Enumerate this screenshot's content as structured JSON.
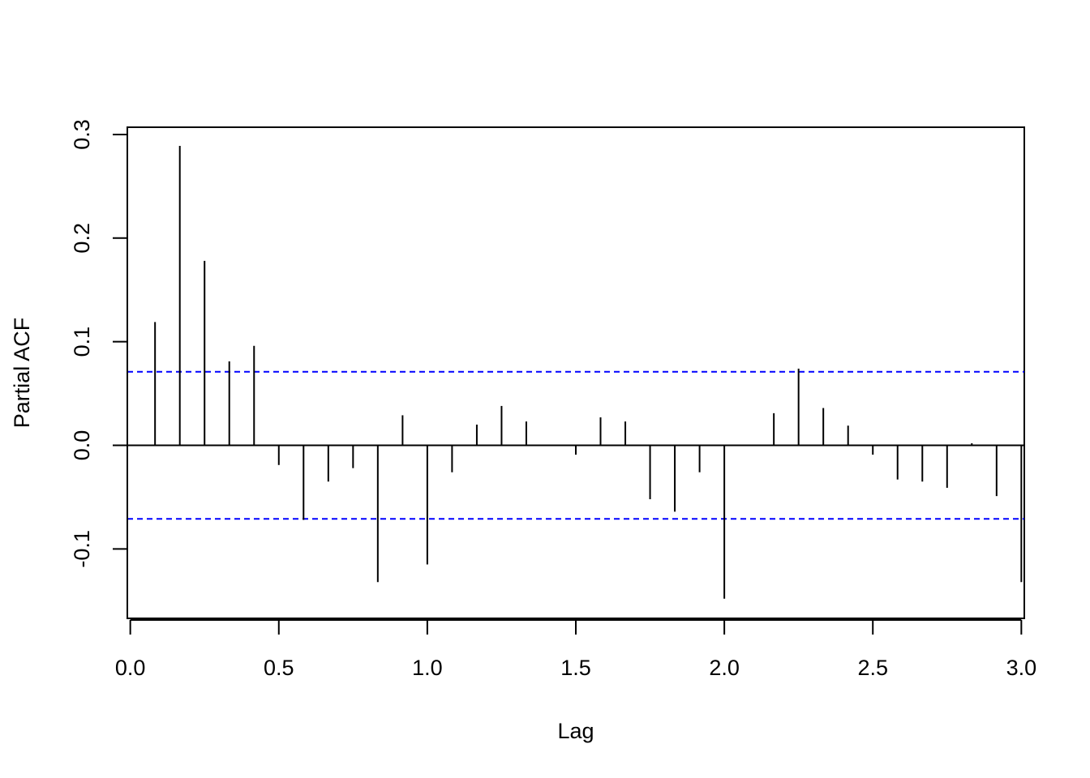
{
  "chart_data": {
    "type": "bar",
    "title": "",
    "xlabel": "Lag",
    "ylabel": "Partial ACF",
    "xlim": [
      -0.01,
      3.01
    ],
    "ylim": [
      -0.167,
      0.307
    ],
    "x_ticks": [
      0.0,
      0.5,
      1.0,
      1.5,
      2.0,
      2.5,
      3.0
    ],
    "x_tick_labels": [
      "0.0",
      "0.5",
      "1.0",
      "1.5",
      "2.0",
      "2.5",
      "3.0"
    ],
    "y_ticks": [
      -0.1,
      0.0,
      0.1,
      0.2,
      0.3
    ],
    "y_tick_labels": [
      "-0.1",
      "0.0",
      "0.1",
      "0.2",
      "0.3"
    ],
    "confidence_bound": 0.071,
    "zero_line": true,
    "colors": {
      "spikes": "#000000",
      "bounds": "#0000ff"
    },
    "lags": [
      0.0833,
      0.1667,
      0.25,
      0.3333,
      0.4167,
      0.5,
      0.5833,
      0.6667,
      0.75,
      0.8333,
      0.9167,
      1.0,
      1.0833,
      1.1667,
      1.25,
      1.3333,
      1.4167,
      1.5,
      1.5833,
      1.6667,
      1.75,
      1.8333,
      1.9167,
      2.0,
      2.0833,
      2.1667,
      2.25,
      2.3333,
      2.4167,
      2.5,
      2.5833,
      2.6667,
      2.75,
      2.8333,
      2.9167,
      3.0
    ],
    "values": [
      0.119,
      0.289,
      0.178,
      0.081,
      0.096,
      -0.019,
      -0.072,
      -0.035,
      -0.022,
      -0.132,
      0.029,
      -0.115,
      -0.026,
      0.02,
      0.038,
      0.023,
      0.0,
      -0.009,
      0.027,
      0.023,
      -0.052,
      -0.064,
      -0.026,
      -0.148,
      0.0,
      0.031,
      0.074,
      0.036,
      0.019,
      -0.009,
      -0.033,
      -0.035,
      -0.041,
      0.002,
      -0.049,
      -0.132
    ]
  }
}
